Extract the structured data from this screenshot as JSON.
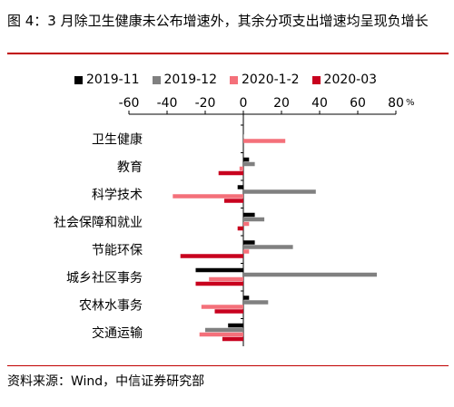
{
  "title": "图 4：3 月除卫生健康未公布增速外，其余分项支出增速均呈现负增长",
  "source": "资料来源：Wind，中信证券研究部",
  "chart_data": {
    "type": "bar",
    "orientation": "horizontal",
    "categories": [
      "卫生健康",
      "教育",
      "科学技术",
      "社会保障和就业",
      "节能环保",
      "城乡社区事务",
      "农林水事务",
      "交通运输"
    ],
    "series": [
      {
        "name": "2019-11",
        "color": "#000000",
        "values": [
          0,
          3,
          -3,
          6,
          6,
          -25,
          3,
          -8
        ]
      },
      {
        "name": "2019-12",
        "color": "#808080",
        "values": [
          0,
          6,
          38,
          11,
          26,
          70,
          13,
          -20
        ]
      },
      {
        "name": "2020-1-2",
        "color": "#f4707a",
        "values": [
          22,
          -2,
          -37,
          3,
          3,
          -18,
          -22,
          -23
        ]
      },
      {
        "name": "2020-03",
        "color": "#c8001e",
        "values": [
          null,
          -13,
          -10,
          -3,
          -33,
          -25,
          -15,
          -11
        ]
      }
    ],
    "xlim": [
      -60,
      80
    ],
    "xticks": [
      "-60",
      "-40",
      "-20",
      "0",
      "20",
      "40",
      "60",
      "80"
    ],
    "unit": "%",
    "legend_position": "top",
    "grid": false
  }
}
